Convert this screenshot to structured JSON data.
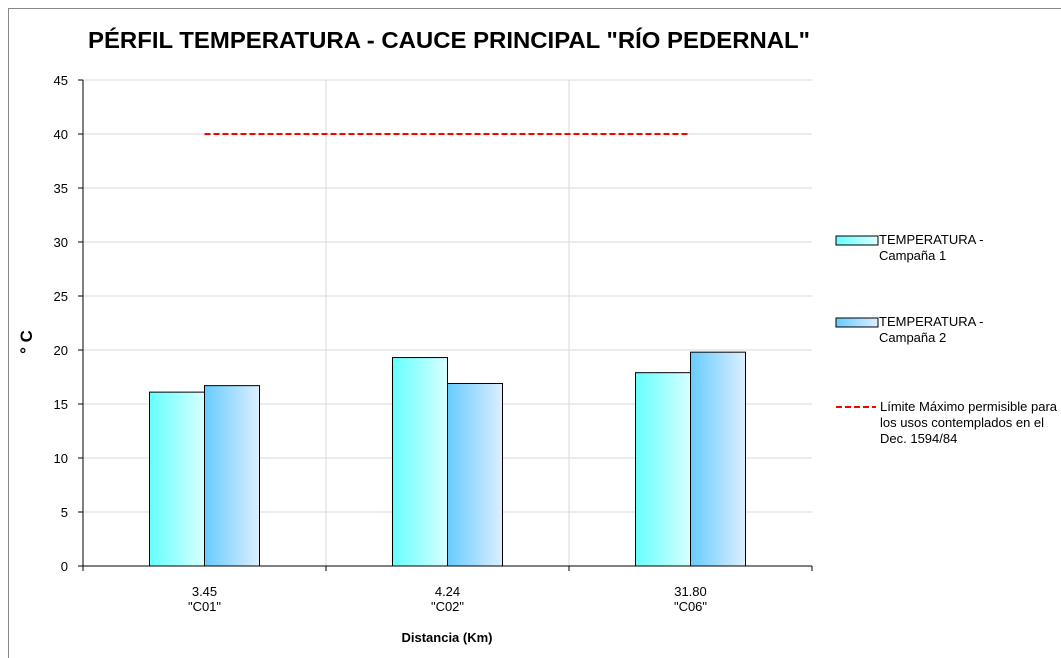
{
  "chart_data": {
    "type": "bar",
    "title": "PÉRFIL TEMPERATURA - CAUCE PRINCIPAL \"RÍO PEDERNAL\"",
    "x_label": "Distancia (Km)",
    "y_label": "° C",
    "categories": [
      [
        "3.45",
        "\"C01\""
      ],
      [
        "4.24",
        "\"C02\""
      ],
      [
        "31.80",
        "\"C06\""
      ]
    ],
    "series": [
      {
        "name": "TEMPERATURA  - Campaña 1",
        "color": "#66ffff",
        "values": [
          16.1,
          19.3,
          17.9
        ]
      },
      {
        "name": "TEMPERATURA - Campaña 2",
        "color": "#66ccff",
        "values": [
          16.7,
          16.9,
          19.8
        ]
      }
    ],
    "reference_line": {
      "name": "Límite Máximo permisible para los usos contemplados en el Dec. 1594/84",
      "value": 40,
      "color": "#ff0000"
    },
    "ylim": [
      0,
      45
    ],
    "yticks": [
      0,
      5,
      10,
      15,
      20,
      25,
      30,
      35,
      40,
      45
    ],
    "grid": true,
    "legend": "right"
  }
}
